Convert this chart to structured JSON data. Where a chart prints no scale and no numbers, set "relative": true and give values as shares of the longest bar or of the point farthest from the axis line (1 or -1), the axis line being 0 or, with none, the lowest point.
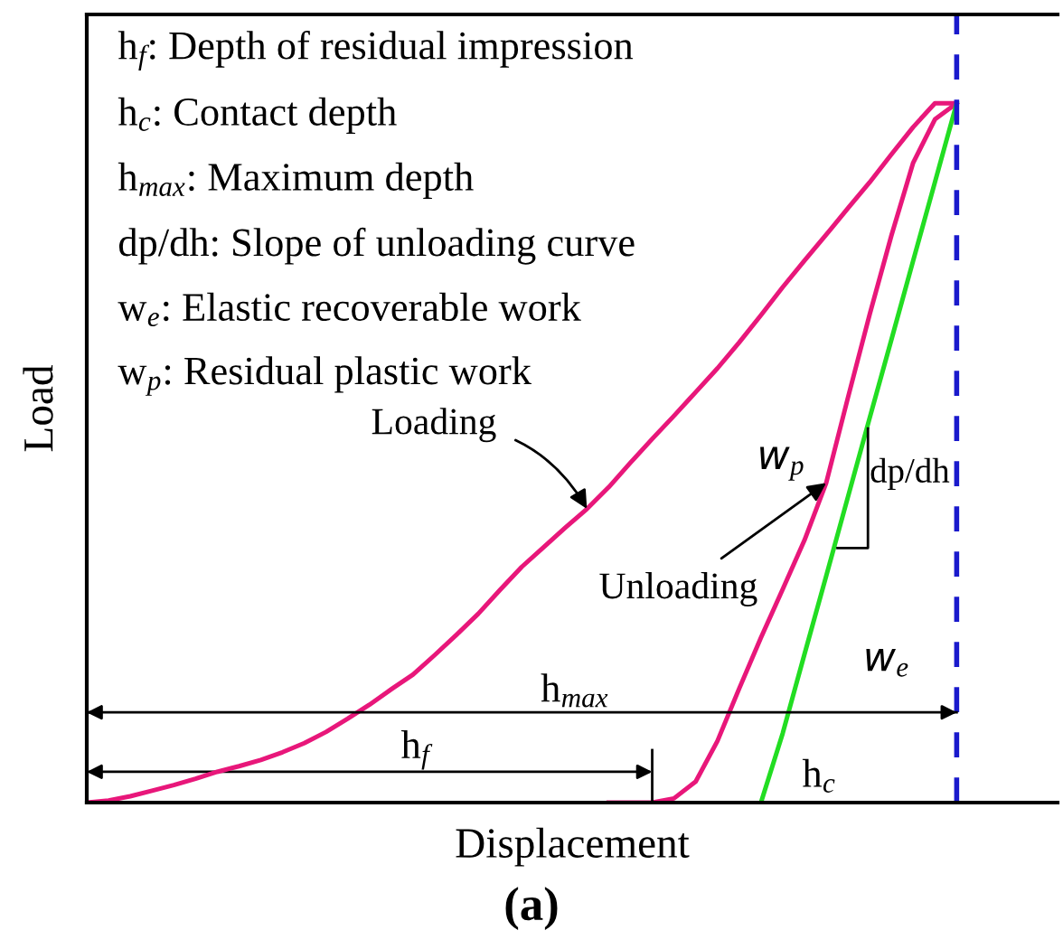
{
  "chart_data": {
    "type": "line",
    "relative": true,
    "title": "(a)",
    "xlabel": "Displacement",
    "ylabel": "Load",
    "legend": false,
    "marker": "none",
    "line_style": "solid",
    "tick_labels": false,
    "categories": [
      null,
      null,
      null,
      null,
      null,
      null,
      null,
      null,
      null,
      null,
      null,
      null,
      null,
      null,
      null,
      null,
      null,
      null,
      null,
      null,
      null,
      null,
      null,
      null,
      null,
      null,
      null,
      null,
      null,
      null,
      null,
      null,
      null,
      null,
      null,
      null,
      null,
      null,
      null,
      null,
      null
    ],
    "series": [
      {
        "color": "#e8177a",
        "values": [
          0,
          0.003,
          0.009,
          0.017,
          0.025,
          0.034,
          0.044,
          0.052,
          0.061,
          0.072,
          0.085,
          0.101,
          0.12,
          0.14,
          0.162,
          0.183,
          0.211,
          0.24,
          0.27,
          0.304,
          0.337,
          0.365,
          0.393,
          0.42,
          0.451,
          0.486,
          0.52,
          0.553,
          0.587,
          0.621,
          0.658,
          0.697,
          0.737,
          0.775,
          0.812,
          0.85,
          0.887,
          0.927,
          0.966,
          1,
          1
        ]
      },
      {
        "color": "#e8177a",
        "values": [
          null,
          null,
          null,
          null,
          null,
          null,
          null,
          null,
          null,
          null,
          null,
          null,
          null,
          null,
          null,
          null,
          null,
          null,
          null,
          null,
          null,
          null,
          null,
          null,
          0,
          0,
          0,
          0.006,
          0.03,
          0.088,
          0.163,
          0.236,
          0.305,
          0.375,
          0.457,
          0.579,
          0.698,
          0.811,
          0.915,
          0.977,
          1
        ]
      },
      {
        "color": "#22dd22",
        "values": [
          null,
          null,
          null,
          null,
          null,
          null,
          null,
          null,
          null,
          null,
          null,
          null,
          null,
          null,
          null,
          null,
          null,
          null,
          null,
          null,
          null,
          null,
          null,
          null,
          null,
          null,
          null,
          null,
          null,
          null,
          null,
          0,
          0.099,
          0.212,
          0.324,
          0.437,
          0.55,
          0.662,
          0.775,
          0.887,
          1
        ]
      }
    ],
    "ref_lines": [
      {
        "axis": "x",
        "color": "#1a1acc",
        "line_style": "dashed"
      },
      {
        "axis": "y",
        "value": 0.129,
        "label": "h$_{max}$",
        "color": "#000000"
      }
    ],
    "annotations": [
      "h$_{f}$: Depth of residual impression",
      "h$_{c}$: Contact depth",
      "h$_{max}$: Maximum depth",
      "dp/dh: Slope of unloading curve",
      "w$_{e}$: Elastic recoverable work",
      "w$_{p}$: Residual plastic work",
      "Loading",
      "Unloading",
      "dp/dh",
      "w$_{p}$",
      "w$_{e}$",
      "h$_{f}$",
      "h$_{c}$"
    ]
  }
}
